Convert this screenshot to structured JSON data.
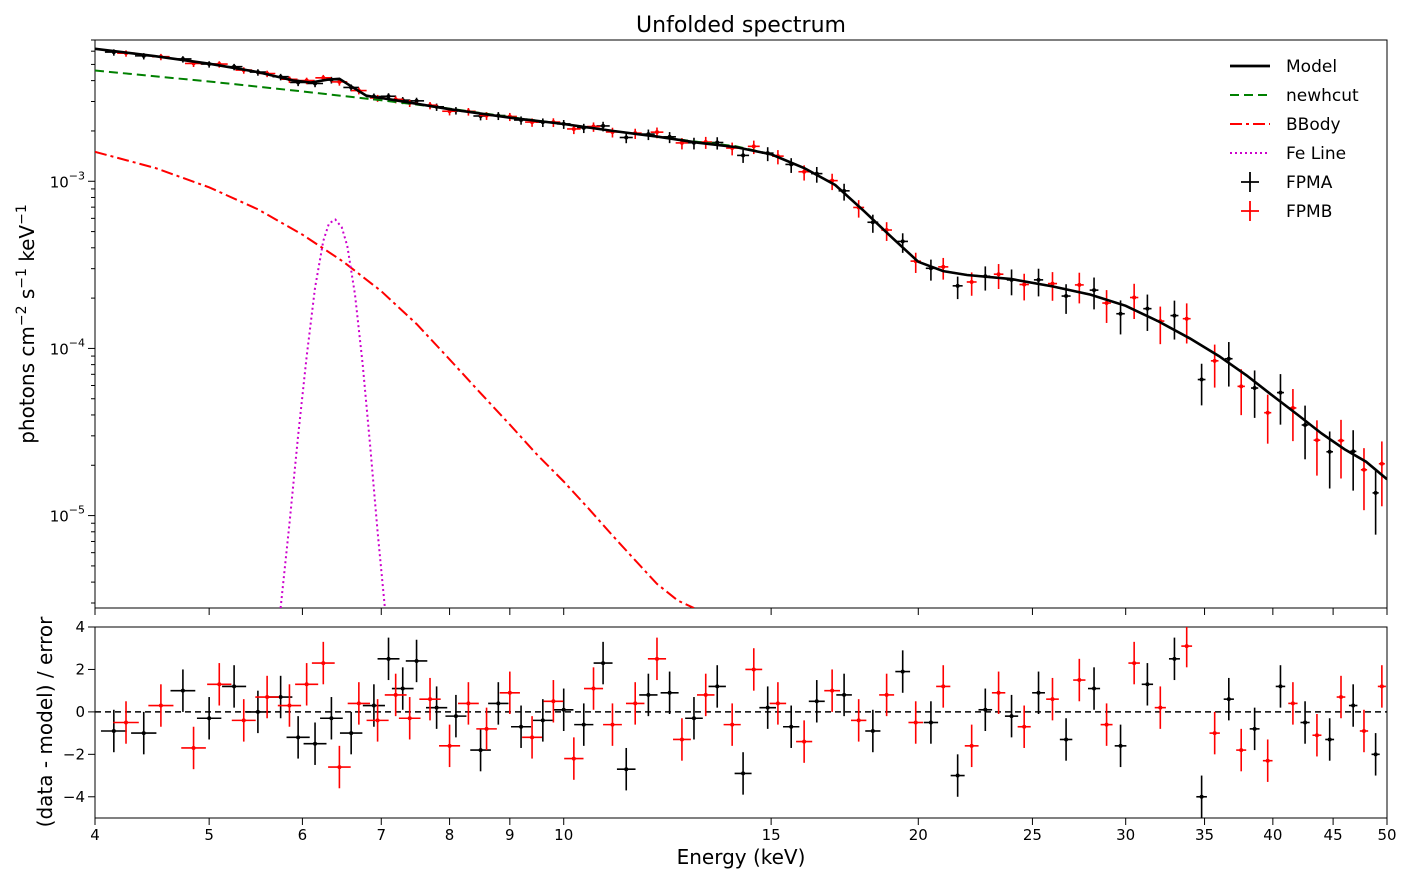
{
  "chart_data": [
    {
      "type": "line",
      "panel": "spectrum",
      "title": "Unfolded spectrum",
      "xlabel": "Energy (keV)",
      "ylabel": "photons cm⁻² s⁻¹ keV⁻¹",
      "xscale": "log",
      "yscale": "log",
      "xlim": [
        4,
        50
      ],
      "ylim": [
        2.8e-06,
        0.007
      ],
      "ytick_labels": [
        {
          "value": 0.001,
          "base": "10",
          "exp": "−3"
        },
        {
          "value": 0.0001,
          "base": "10",
          "exp": "−4"
        },
        {
          "value": 1e-05,
          "base": "10",
          "exp": "−5"
        }
      ],
      "legend": {
        "placement": "top-right",
        "entries": [
          {
            "label": "Model",
            "color": "#000000",
            "style": "solid"
          },
          {
            "label": "newhcut",
            "color": "#008000",
            "style": "dashed"
          },
          {
            "label": "BBody",
            "color": "#ff0000",
            "style": "dashdot"
          },
          {
            "label": "Fe Line",
            "color": "#cc00cc",
            "style": "dotted"
          },
          {
            "label": "FPMA",
            "color": "#000000",
            "style": "errorbar"
          },
          {
            "label": "FPMB",
            "color": "#ff0000",
            "style": "errorbar"
          }
        ]
      },
      "series": [
        {
          "name": "Model",
          "color": "#000000",
          "style": "solid",
          "x": [
            4,
            4.5,
            5,
            5.5,
            5.9,
            6.1,
            6.3,
            6.45,
            6.6,
            6.8,
            7.2,
            8,
            9,
            10,
            11,
            12,
            13,
            14,
            15,
            16,
            17,
            18,
            19,
            20,
            21,
            22,
            24,
            26,
            28,
            30,
            32,
            34,
            36,
            38,
            40,
            42,
            44,
            46,
            48,
            50
          ],
          "y": [
            0.0062,
            0.0056,
            0.00505,
            0.0045,
            0.004,
            0.0039,
            0.00405,
            0.0041,
            0.0037,
            0.00325,
            0.00305,
            0.0027,
            0.0024,
            0.0022,
            0.002,
            0.00185,
            0.0017,
            0.0016,
            0.00145,
            0.0012,
            0.00095,
            0.00066,
            0.00046,
            0.00033,
            0.00029,
            0.000275,
            0.00026,
            0.000235,
            0.00021,
            0.00018,
            0.000145,
            0.000115,
            9e-05,
            6.9e-05,
            5.2e-05,
            4e-05,
            3.1e-05,
            2.5e-05,
            2.1e-05,
            1.65e-05
          ]
        },
        {
          "name": "newhcut",
          "color": "#008000",
          "style": "dashed",
          "x": [
            4,
            5,
            6,
            7,
            8,
            9,
            10,
            11,
            12,
            13,
            14,
            15,
            16,
            17,
            18,
            19,
            20,
            21,
            22,
            24,
            26,
            28,
            30,
            32,
            34,
            36,
            38,
            40,
            42,
            44,
            46,
            48,
            50
          ],
          "y": [
            0.0046,
            0.00395,
            0.00345,
            0.00305,
            0.00272,
            0.00242,
            0.0022,
            0.002,
            0.00185,
            0.00172,
            0.00162,
            0.00145,
            0.0012,
            0.00095,
            0.00066,
            0.00046,
            0.00033,
            0.00029,
            0.000275,
            0.00026,
            0.000235,
            0.00021,
            0.00018,
            0.000145,
            0.000115,
            9e-05,
            6.9e-05,
            5.2e-05,
            4e-05,
            3.1e-05,
            2.5e-05,
            2.1e-05,
            1.65e-05
          ]
        },
        {
          "name": "BBody",
          "color": "#ff0000",
          "style": "dashdot",
          "x": [
            4,
            4.5,
            5,
            5.5,
            6,
            6.5,
            7,
            7.5,
            8,
            8.5,
            9,
            9.5,
            10,
            10.5,
            11,
            11.5,
            12,
            12.5,
            12.9
          ],
          "y": [
            0.0015,
            0.0012,
            0.00092,
            0.00068,
            0.00048,
            0.00033,
            0.00022,
            0.00014,
            8.6e-05,
            5.4e-05,
            3.5e-05,
            2.3e-05,
            1.6e-05,
            1.1e-05,
            7.6e-06,
            5.4e-06,
            3.9e-06,
            3.1e-06,
            2.8e-06
          ]
        },
        {
          "name": "Fe Line",
          "color": "#cc00cc",
          "style": "dotted",
          "x": [
            5.75,
            5.85,
            5.95,
            6.05,
            6.15,
            6.25,
            6.32,
            6.4,
            6.48,
            6.55,
            6.65,
            6.75,
            6.85,
            6.95,
            7.05
          ],
          "y": [
            2.8e-06,
            9e-06,
            3e-05,
            9e-05,
            0.00023,
            0.00044,
            0.00056,
            0.00059,
            0.00053,
            0.00041,
            0.00021,
            8e-05,
            2.6e-05,
            8e-06,
            2.8e-06
          ]
        }
      ]
    },
    {
      "type": "scatter",
      "panel": "residuals",
      "xlabel": "Energy (keV)",
      "ylabel": "(data - model) / error",
      "xscale": "log",
      "xlim": [
        4,
        50
      ],
      "ylim": [
        -5,
        4
      ],
      "yticks": [
        -4,
        -2,
        0,
        2,
        4
      ],
      "xticks": [
        4,
        5,
        6,
        7,
        8,
        9,
        10,
        15,
        20,
        25,
        30,
        35,
        40,
        45,
        50
      ],
      "reference_line": 0,
      "series": [
        {
          "name": "FPMA",
          "color": "#000000",
          "x": [
            4.15,
            4.4,
            4.75,
            5.0,
            5.25,
            5.5,
            5.75,
            5.95,
            6.15,
            6.35,
            6.6,
            6.9,
            7.1,
            7.3,
            7.5,
            7.8,
            8.1,
            8.5,
            8.8,
            9.2,
            9.6,
            10.0,
            10.4,
            10.8,
            11.3,
            11.8,
            12.3,
            12.9,
            13.5,
            14.2,
            14.9,
            15.6,
            16.4,
            17.3,
            18.3,
            19.4,
            20.5,
            21.6,
            22.8,
            24.0,
            25.3,
            26.7,
            28.2,
            29.7,
            31.3,
            33.0,
            34.8,
            36.7,
            38.6,
            40.6,
            42.6,
            44.7,
            46.8,
            48.9
          ],
          "y": [
            -0.9,
            -1.0,
            1.0,
            -0.3,
            1.2,
            0.0,
            0.7,
            -1.2,
            -1.5,
            -0.3,
            -1.0,
            0.3,
            2.5,
            1.1,
            2.4,
            0.2,
            -0.2,
            -1.8,
            0.4,
            -0.7,
            -0.4,
            0.1,
            -0.6,
            2.3,
            -2.7,
            0.8,
            0.9,
            -0.3,
            1.2,
            -2.9,
            0.2,
            -0.7,
            0.5,
            0.8,
            -0.9,
            1.9,
            -0.5,
            -3.0,
            0.1,
            -0.2,
            0.9,
            -1.3,
            1.1,
            -1.6,
            1.3,
            2.5,
            -4.0,
            0.6,
            -0.8,
            1.2,
            -0.5,
            -1.3,
            0.3,
            -2.0
          ]
        },
        {
          "name": "FPMB",
          "color": "#ff0000",
          "x": [
            4.25,
            4.55,
            4.85,
            5.1,
            5.35,
            5.6,
            5.85,
            6.05,
            6.25,
            6.45,
            6.7,
            6.95,
            7.2,
            7.4,
            7.7,
            8.0,
            8.3,
            8.6,
            9.0,
            9.4,
            9.8,
            10.2,
            10.6,
            11.0,
            11.5,
            12.0,
            12.6,
            13.2,
            13.9,
            14.5,
            15.2,
            16.0,
            16.9,
            17.8,
            18.8,
            19.9,
            21.0,
            22.2,
            23.4,
            24.6,
            26.0,
            27.4,
            28.9,
            30.5,
            32.1,
            33.8,
            35.7,
            37.6,
            39.6,
            41.6,
            43.6,
            45.7,
            47.8,
            49.5
          ],
          "y": [
            -0.5,
            0.3,
            -1.7,
            1.3,
            -0.4,
            0.7,
            0.3,
            1.3,
            2.3,
            -2.6,
            0.4,
            -0.4,
            0.8,
            -0.3,
            0.6,
            -1.6,
            0.4,
            -0.8,
            0.9,
            -1.2,
            0.5,
            -2.2,
            1.1,
            -0.6,
            0.4,
            2.5,
            -1.3,
            0.8,
            -0.6,
            2.0,
            0.4,
            -1.4,
            1.0,
            -0.4,
            0.8,
            -0.5,
            1.2,
            -1.6,
            0.9,
            -0.7,
            0.6,
            1.5,
            -0.6,
            2.3,
            0.2,
            3.1,
            -1.0,
            -1.8,
            -2.3,
            0.4,
            -1.1,
            0.7,
            -0.9,
            1.2
          ]
        }
      ]
    }
  ]
}
